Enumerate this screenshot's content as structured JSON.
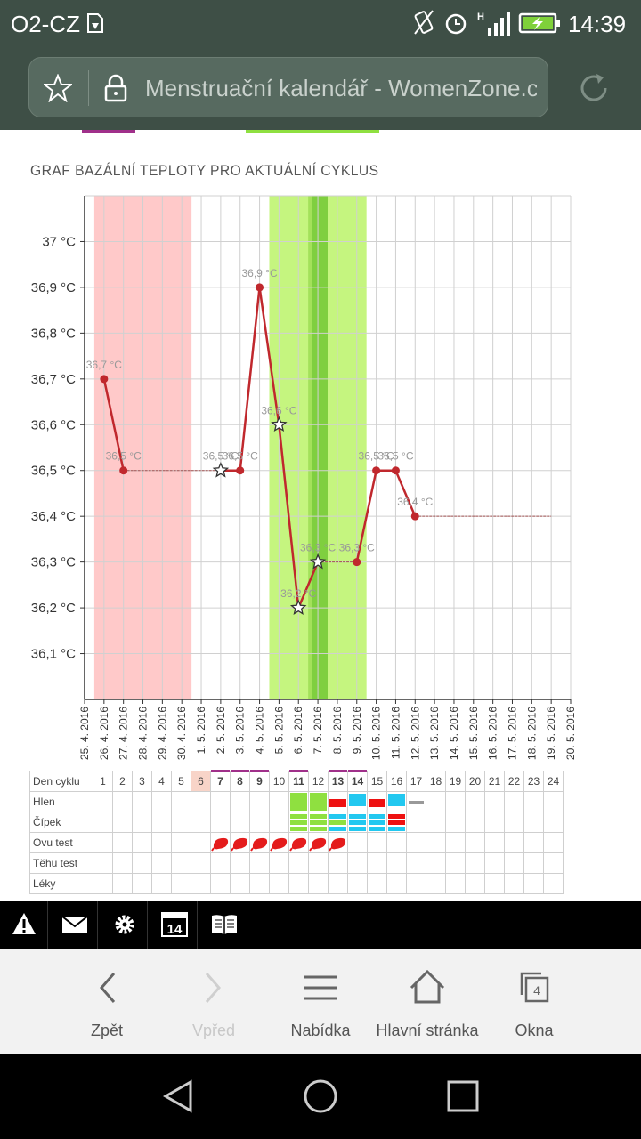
{
  "status_bar": {
    "carrier": "O2-CZ",
    "time": "14:39",
    "signal_label": "H"
  },
  "browser": {
    "url_text": "Menstruační kalendář - WomenZone.c"
  },
  "page": {
    "chart_title": "GRAF BAZÁLNÍ TEPLOTY PRO AKTUÁLNÍ CYKLUS"
  },
  "chart_data": {
    "type": "line",
    "title": "GRAF BAZÁLNÍ TEPLOTY PRO AKTUÁLNÍ CYKLUS",
    "ylim": [
      36.0,
      37.1
    ],
    "yticks": [
      37.0,
      36.9,
      36.8,
      36.7,
      36.6,
      36.5,
      36.4,
      36.3,
      36.2,
      36.1
    ],
    "ytick_labels": [
      "37 °C",
      "36,9 °C",
      "36,8 °C",
      "36,7 °C",
      "36,6 °C",
      "36,5 °C",
      "36,4 °C",
      "36,3 °C",
      "36,2 °C",
      "36,1 °C"
    ],
    "x_labels": [
      "25.4.2016",
      "26.4.2016",
      "27.4.2016",
      "28.4.2016",
      "29.4.2016",
      "30.4.2016",
      "1.5.2016",
      "2.5.2016",
      "3.5.2016",
      "4.5.2016",
      "5.5.2016",
      "6.5.2016",
      "7.5.2016",
      "8.5.2016",
      "9.5.2016",
      "10.5.2016",
      "11.5.2016",
      "12.5.2016",
      "13.5.2016",
      "14.5.2016",
      "15.5.2016",
      "16.5.2016",
      "17.5.2016",
      "18.5.2016",
      "19.5.2016",
      "20.5.2016"
    ],
    "grid": true,
    "bands": [
      {
        "name": "menstruation",
        "from": 0.5,
        "to": 5.5,
        "color": "#ffc9c9"
      },
      {
        "name": "fertile",
        "from": 9.5,
        "to": 14.5,
        "color": "#c5f57f"
      },
      {
        "name": "fertile-peak",
        "from": 11.5,
        "to": 12.5,
        "color": "#a3e15a"
      },
      {
        "name": "ovulation",
        "from": 11.7,
        "to": 12.5,
        "color": "#7fcf3f"
      }
    ],
    "series": [
      {
        "points": [
          {
            "x": 1,
            "y": 36.7,
            "label": "36,7 °C",
            "marker": "dot"
          },
          {
            "x": 2,
            "y": 36.5,
            "label": "36,5 °C",
            "marker": "dot"
          },
          {
            "x": 7,
            "y": 36.5,
            "label": "36,5 °C",
            "marker": "star"
          },
          {
            "x": 8,
            "y": 36.5,
            "label": "36,5 °C",
            "marker": "dot"
          },
          {
            "x": 9,
            "y": 36.9,
            "label": "36,9 °C",
            "marker": "dot"
          },
          {
            "x": 10,
            "y": 36.6,
            "label": "36,6 °C",
            "marker": "star"
          },
          {
            "x": 11,
            "y": 36.2,
            "label": "36,2 °C",
            "marker": "star"
          },
          {
            "x": 12,
            "y": 36.3,
            "label": "36,3 °C",
            "marker": "star"
          },
          {
            "x": 14,
            "y": 36.3,
            "label": "36,3 °C",
            "marker": "dot"
          },
          {
            "x": 15,
            "y": 36.5,
            "label": "36,5 °C",
            "marker": "dot"
          },
          {
            "x": 16,
            "y": 36.5,
            "label": "36,5 °C",
            "marker": "dot"
          },
          {
            "x": 17,
            "y": 36.4,
            "label": "36,4 °C",
            "marker": "dot"
          }
        ],
        "flat_segments": [
          [
            2,
            7,
            36.5
          ],
          [
            12,
            14,
            36.3
          ],
          [
            17,
            24,
            36.4
          ]
        ],
        "color": "#c0282d"
      }
    ]
  },
  "table": {
    "rows": [
      "Den cyklu",
      "Hlen",
      "Čípek",
      "Ovu test",
      "Těhu test",
      "Léky"
    ],
    "days": [
      "1",
      "2",
      "3",
      "4",
      "5",
      "6",
      "7",
      "8",
      "9",
      "10",
      "11",
      "12",
      "13",
      "14",
      "15",
      "16",
      "17",
      "18",
      "19",
      "20",
      "21",
      "22",
      "23",
      "24"
    ],
    "today_day": "6",
    "marked_days": [
      "7",
      "8",
      "9",
      "11",
      "13",
      "14"
    ],
    "bold_days": [
      "7",
      "8",
      "9",
      "11",
      "13",
      "14"
    ]
  },
  "icon_bar": [
    "warning-icon",
    "mail-icon",
    "gear-icon",
    "calendar-icon",
    "book-icon"
  ],
  "calendar_icon_number": "14",
  "toolbar": {
    "back_label": "Zpět",
    "forward_label": "Vpřed",
    "menu_label": "Nabídka",
    "home_label": "Hlavní stránka",
    "tabs_label": "Okna",
    "tabs_count": "4"
  },
  "colors": {
    "status_bg": "#3e4f46",
    "line": "#c0282d",
    "menstruation": "#ffc9c9",
    "fertile": "#c5f57f"
  }
}
